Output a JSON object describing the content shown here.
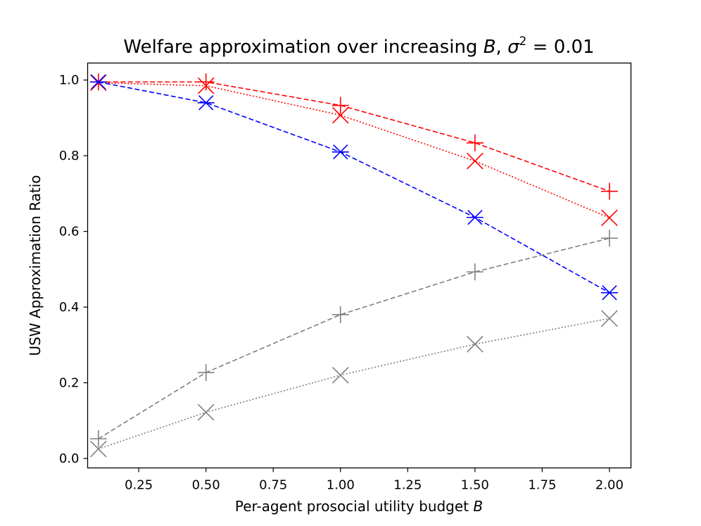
{
  "chart_data": {
    "type": "line",
    "title_prefix": "Welfare approximation over increasing ",
    "title_var": "B",
    "title_sep": ", ",
    "title_sigma": "σ",
    "title_exp": "2",
    "title_suffix": " = 0.01",
    "xlabel_prefix": "Per-agent prosocial utility budget ",
    "xlabel_var": "B",
    "ylabel": "USW Approximation Ratio",
    "xlim": [
      0.06,
      2.08
    ],
    "ylim": [
      -0.025,
      1.045
    ],
    "x_ticks": [
      0.25,
      0.5,
      0.75,
      1.0,
      1.25,
      1.5,
      1.75,
      2.0
    ],
    "x_tick_labels": [
      "0.25",
      "0.50",
      "0.75",
      "1.00",
      "1.25",
      "1.50",
      "1.75",
      "2.00"
    ],
    "y_ticks": [
      0.0,
      0.2,
      0.4,
      0.6,
      0.8,
      1.0
    ],
    "y_tick_labels": [
      "0.0",
      "0.2",
      "0.4",
      "0.6",
      "0.8",
      "1.0"
    ],
    "x": [
      0.1,
      0.5,
      1.0,
      1.5,
      2.0
    ],
    "series": [
      {
        "name": "gray-x-dotted",
        "color": "#808080",
        "marker": "x",
        "linestyle": "dotted",
        "values": [
          0.025,
          0.122,
          0.22,
          0.302,
          0.37
        ]
      },
      {
        "name": "gray-plus-dashed",
        "color": "#808080",
        "marker": "plus",
        "linestyle": "dashed",
        "values": [
          0.052,
          0.227,
          0.38,
          0.493,
          0.582
        ]
      },
      {
        "name": "red-x-dotted",
        "color": "#ff0000",
        "marker": "x",
        "linestyle": "dotted",
        "values": [
          0.993,
          0.985,
          0.907,
          0.786,
          0.636
        ]
      },
      {
        "name": "red-plus-dashed",
        "color": "#ff0000",
        "marker": "plus",
        "linestyle": "dashed",
        "values": [
          0.995,
          0.995,
          0.933,
          0.834,
          0.706
        ]
      },
      {
        "name": "blue-star-dashed",
        "color": "#0000ff",
        "marker": "star",
        "linestyle": "dashed",
        "values": [
          0.995,
          0.94,
          0.81,
          0.637,
          0.438
        ]
      }
    ]
  }
}
